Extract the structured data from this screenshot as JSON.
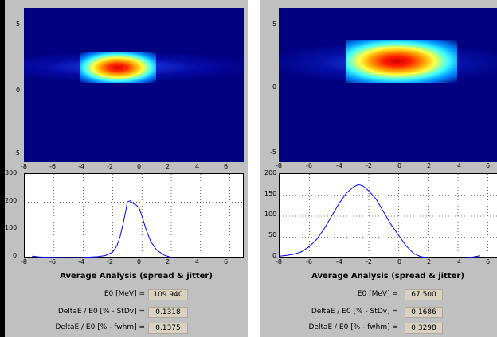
{
  "panels": [
    {
      "id": "left",
      "image": {
        "y_ticks": [
          "5",
          "0",
          "-5"
        ],
        "x_ticks": [
          "-8",
          "-6",
          "-4",
          "-2",
          "0",
          "2",
          "4",
          "6"
        ]
      },
      "plot": {
        "y_ticks": [
          "300",
          "200",
          "100",
          "0"
        ],
        "x_ticks": [
          "-8",
          "-6",
          "-4",
          "-2",
          "0",
          "2",
          "4",
          "6"
        ]
      },
      "section_title": "Average Analysis (spread & jitter)",
      "metrics": [
        {
          "label": "E0 [MeV] =",
          "value": "109.940"
        },
        {
          "label": "DeltaE / E0 [% - StDv] =",
          "value": "0.1318"
        },
        {
          "label": "DeltaE / E0 [% - fwhm] =",
          "value": "0.1375"
        }
      ]
    },
    {
      "id": "right",
      "image": {
        "y_ticks": [
          "5",
          "0",
          "-5"
        ],
        "x_ticks": [
          "-8",
          "-6",
          "-4",
          "-2",
          "0",
          "2",
          "4",
          "6"
        ]
      },
      "plot": {
        "y_ticks": [
          "200",
          "150",
          "100",
          "50",
          "0"
        ],
        "x_ticks": [
          "-8",
          "-6",
          "-4",
          "-2",
          "0",
          "2",
          "4",
          "6"
        ]
      },
      "section_title": "Average Analysis (spread & jitter)",
      "metrics": [
        {
          "label": "E0 [MeV] =",
          "value": "67.500"
        },
        {
          "label": "DeltaE / E0 [% - StDv] =",
          "value": "0.1686"
        },
        {
          "label": "DeltaE / E0 [% - fwhm] =",
          "value": "0.3298"
        }
      ]
    }
  ],
  "chart_data": [
    {
      "type": "line",
      "xlim": [
        -8,
        7
      ],
      "ylim": [
        0,
        300
      ],
      "x": [
        -7.5,
        -7,
        -6,
        -5,
        -4,
        -3,
        -2.5,
        -2,
        -1.7,
        -1.5,
        -1.3,
        -1.1,
        -1.0,
        -0.8,
        -0.6,
        -0.4,
        -0.2,
        0,
        0.3,
        0.6,
        1,
        1.5,
        2,
        2.5,
        3
      ],
      "y": [
        8,
        5,
        3,
        2,
        3,
        6,
        10,
        22,
        45,
        75,
        120,
        170,
        200,
        205,
        195,
        190,
        180,
        150,
        100,
        60,
        30,
        12,
        3,
        0,
        0
      ],
      "colors": {
        "line": "#0000ff"
      }
    },
    {
      "type": "line",
      "xlim": [
        -8,
        7
      ],
      "ylim": [
        0,
        200
      ],
      "x": [
        -8,
        -7.5,
        -7,
        -6.5,
        -6,
        -5.5,
        -5,
        -4.5,
        -4,
        -3.5,
        -3,
        -2.7,
        -2.4,
        -2,
        -1.5,
        -1,
        -0.5,
        0,
        0.5,
        1,
        1.5,
        2,
        2.5,
        3,
        4,
        5,
        5.5
      ],
      "y": [
        5,
        7,
        10,
        16,
        28,
        45,
        70,
        100,
        130,
        155,
        170,
        175,
        172,
        160,
        140,
        110,
        80,
        55,
        30,
        12,
        4,
        1,
        0,
        0,
        0,
        3,
        6
      ],
      "colors": {
        "line": "#0000ff"
      }
    }
  ]
}
